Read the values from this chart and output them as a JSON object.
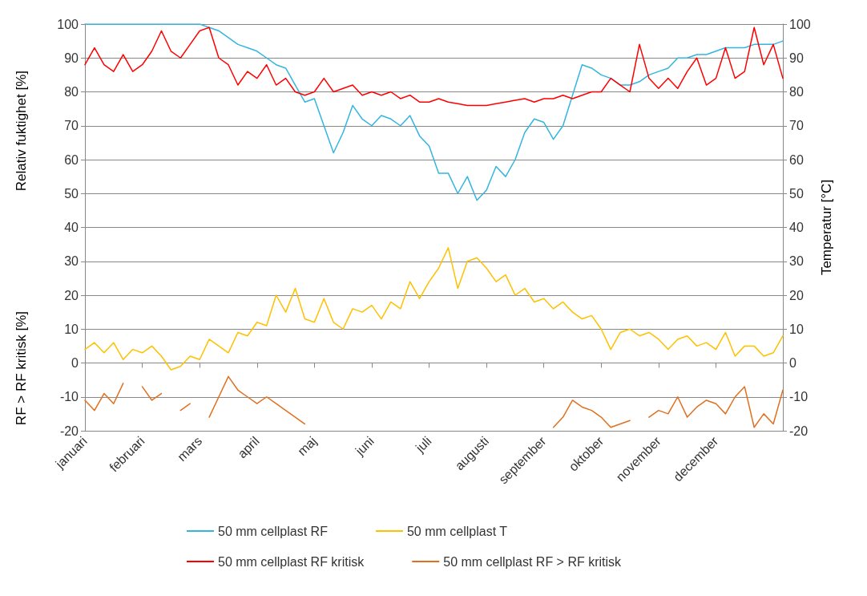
{
  "chart_data": {
    "type": "line",
    "ylabel": "Relativ fuktighet [%]",
    "y2label": "Temperatur [°C]",
    "annotations": [
      "RF > RF kritisk [%]"
    ],
    "categories": [
      "januari",
      null,
      null,
      null,
      null,
      null,
      "februari",
      null,
      null,
      null,
      null,
      null,
      "mars",
      null,
      null,
      null,
      null,
      null,
      "april",
      null,
      null,
      null,
      null,
      null,
      "maj",
      null,
      null,
      null,
      null,
      null,
      "juni",
      null,
      null,
      null,
      null,
      null,
      "juli",
      null,
      null,
      null,
      null,
      null,
      "augusti",
      null,
      null,
      null,
      null,
      null,
      "september",
      null,
      null,
      null,
      null,
      null,
      "oktober",
      null,
      null,
      null,
      null,
      null,
      "november",
      null,
      null,
      null,
      null,
      null,
      "december",
      null,
      null,
      null,
      null,
      null,
      null,
      null
    ],
    "ylim": [
      -20,
      100
    ],
    "yticks": [
      -20,
      -10,
      0,
      10,
      20,
      30,
      40,
      50,
      60,
      70,
      80,
      90,
      100
    ],
    "y2lim": [
      -20,
      100
    ],
    "y2ticks": [
      -20,
      -10,
      0,
      10,
      20,
      30,
      40,
      50,
      60,
      70,
      80,
      90,
      100
    ],
    "grid": "y",
    "legend": "bottom",
    "line_style": "solid",
    "series": [
      {
        "name": "50 mm cellplast RF",
        "color": "#33b5e0",
        "values": [
          100,
          100,
          100,
          100,
          100,
          100,
          100,
          100,
          100,
          100,
          100,
          100,
          100,
          99,
          98,
          96,
          94,
          93,
          92,
          90,
          88,
          87,
          82,
          77,
          78,
          70,
          62,
          68,
          76,
          72,
          70,
          73,
          72,
          70,
          73,
          67,
          64,
          56,
          56,
          50,
          55,
          48,
          51,
          58,
          55,
          60,
          68,
          72,
          71,
          66,
          70,
          79,
          88,
          87,
          85,
          84,
          82,
          82,
          83,
          85,
          86,
          87,
          90,
          90,
          91,
          91,
          92,
          93,
          93,
          93,
          94,
          94,
          94,
          95
        ]
      },
      {
        "name": "50 mm cellplast T",
        "color": "#ffc000",
        "axis": "y2",
        "values": [
          4,
          6,
          3,
          6,
          1,
          4,
          3,
          5,
          2,
          -2,
          -1,
          2,
          1,
          7,
          5,
          3,
          9,
          8,
          12,
          11,
          20,
          15,
          22,
          13,
          12,
          19,
          12,
          10,
          16,
          15,
          17,
          13,
          18,
          16,
          24,
          19,
          24,
          28,
          34,
          22,
          30,
          31,
          28,
          24,
          26,
          20,
          22,
          18,
          19,
          16,
          18,
          15,
          13,
          14,
          10,
          4,
          9,
          10,
          8,
          9,
          7,
          4,
          7,
          8,
          5,
          6,
          4,
          9,
          2,
          5,
          5,
          2,
          3,
          8
        ]
      },
      {
        "name": "50 mm cellplast RF kritisk",
        "color": "#ff0000",
        "values": [
          88,
          93,
          88,
          86,
          91,
          86,
          88,
          92,
          98,
          92,
          90,
          94,
          98,
          99,
          90,
          88,
          82,
          86,
          84,
          88,
          82,
          84,
          80,
          79,
          80,
          84,
          80,
          81,
          82,
          79,
          80,
          79,
          80,
          78,
          79,
          77,
          77,
          78,
          77,
          76.5,
          76,
          76,
          76,
          76.5,
          77,
          77.5,
          78,
          77,
          78,
          78,
          79,
          78,
          79,
          80,
          80,
          84,
          82,
          80,
          94,
          84,
          81,
          84,
          81,
          86,
          90,
          82,
          84,
          93,
          84,
          86,
          99,
          88,
          94,
          84
        ]
      },
      {
        "name": "50 mm cellplast RF > RF kritisk",
        "color": "#e07020",
        "values": [
          -11,
          -14,
          -9,
          -12,
          -6,
          null,
          -7,
          -11,
          -9,
          null,
          -14,
          -12,
          null,
          -16,
          -10,
          -4,
          -8,
          -10,
          -12,
          -10,
          -12,
          -14,
          -16,
          -18,
          null,
          null,
          null,
          null,
          null,
          null,
          null,
          null,
          null,
          null,
          null,
          null,
          null,
          null,
          null,
          null,
          null,
          null,
          null,
          null,
          null,
          null,
          null,
          null,
          null,
          -19,
          -16,
          -11,
          -13,
          -14,
          -16,
          -19,
          -18,
          -17,
          null,
          -16,
          -14,
          -15,
          -10,
          -16,
          -13,
          -11,
          -12,
          -15,
          -10,
          -7,
          -19,
          -15,
          -18,
          -8
        ]
      }
    ]
  }
}
